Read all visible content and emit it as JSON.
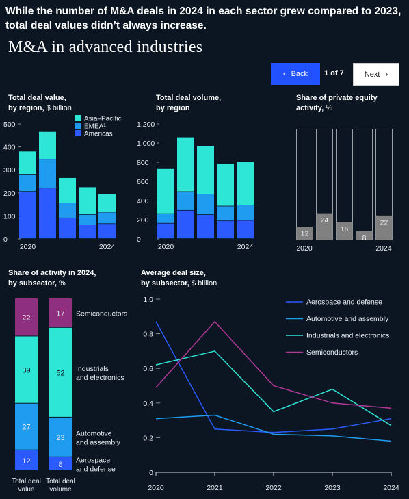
{
  "header": {
    "headline": "While the number of M&A deals in 2024 in each sector grew compared to 2023, total deal values didn’t always increase.",
    "title": "M&A in advanced industries"
  },
  "nav": {
    "back_label": "Back",
    "back_icon": "chevron-left-icon",
    "pager": "1 of 7",
    "next_label": "Next",
    "next_icon": "chevron-right-icon"
  },
  "panels": {
    "value": {
      "title": "Total deal value,",
      "title2": "by region,",
      "unit": " $ billion"
    },
    "volume": {
      "title": "Total deal volume,",
      "title2": "by region",
      "unit": ""
    },
    "pe": {
      "title": "Share of private equity",
      "title2": "activity,",
      "unit": " %"
    },
    "share": {
      "title": "Share of activity in 2024,",
      "title2": "by subsector,",
      "unit": " %"
    },
    "size": {
      "title": "Average deal size,",
      "title2": "by subsector,",
      "unit": " $ billion"
    }
  },
  "colors": {
    "americas": "#2b5bff",
    "emea": "#1f9cf0",
    "asia_pacific": "#2ee6d6",
    "semiconductors": "#8e2f7f",
    "pe_fill": "#808080",
    "pe_outline": "#9aa0a6",
    "line_aero": "#2b5bff",
    "line_auto": "#1f9cf0",
    "line_ind": "#2ee6d6",
    "line_semi": "#b03a98"
  },
  "chart_data": [
    {
      "id": "deal_value",
      "type": "bar",
      "stacked": true,
      "categories": [
        "2020",
        "2021",
        "2022",
        "2023",
        "2024"
      ],
      "x_tick_labels": [
        "2020",
        "2024"
      ],
      "series": [
        {
          "name": "Americas",
          "values": [
            205,
            220,
            90,
            60,
            65
          ]
        },
        {
          "name": "EMEA",
          "values": [
            75,
            125,
            65,
            45,
            50
          ]
        },
        {
          "name": "Asia–Pacific",
          "values": [
            100,
            120,
            110,
            120,
            80
          ]
        }
      ],
      "legend_labels": [
        "Asia–Pacific",
        "EMEA¹",
        "Americas"
      ],
      "legend_position": "top-right",
      "ylim": [
        0,
        500
      ],
      "yticks": [
        0,
        100,
        200,
        300,
        400,
        500
      ]
    },
    {
      "id": "deal_volume",
      "type": "bar",
      "stacked": true,
      "categories": [
        "2020",
        "2021",
        "2022",
        "2023",
        "2024"
      ],
      "x_tick_labels": [
        "2020",
        "2024"
      ],
      "series": [
        {
          "name": "Americas",
          "values": [
            160,
            295,
            250,
            185,
            190
          ]
        },
        {
          "name": "EMEA",
          "values": [
            100,
            195,
            215,
            155,
            160
          ]
        },
        {
          "name": "Asia–Pacific",
          "values": [
            470,
            570,
            505,
            440,
            455
          ]
        }
      ],
      "ylim": [
        0,
        1200
      ],
      "yticks": [
        0,
        200,
        400,
        600,
        800,
        1000,
        1200
      ],
      "ytick_labels": [
        "0",
        "200",
        "400",
        "600",
        "800",
        "1,000",
        "1,200"
      ]
    },
    {
      "id": "private_equity_share",
      "type": "bar",
      "categories": [
        "2020",
        "2021",
        "2022",
        "2023",
        "2024"
      ],
      "x_tick_labels": [
        "2020",
        "2024"
      ],
      "values": [
        12,
        24,
        16,
        8,
        22
      ],
      "ylim": [
        0,
        100
      ]
    },
    {
      "id": "subsector_share",
      "type": "bar",
      "stacked": true,
      "percent": true,
      "categories": [
        "Total deal value",
        "Total deal volume"
      ],
      "category_lines": [
        [
          "Total deal",
          "value"
        ],
        [
          "Total deal",
          "volume"
        ]
      ],
      "series": [
        {
          "name": "Aerospace and defense",
          "label_lines": [
            "Aerospace",
            "and defense"
          ],
          "values": [
            12,
            8
          ]
        },
        {
          "name": "Automotive and assembly",
          "label_lines": [
            "Automotive",
            "and assembly"
          ],
          "values": [
            27,
            23
          ]
        },
        {
          "name": "Industrials and electronics",
          "label_lines": [
            "Industrials",
            "and electronics"
          ],
          "values": [
            39,
            52
          ]
        },
        {
          "name": "Semiconductors",
          "label_lines": [
            "Semiconductors"
          ],
          "values": [
            22,
            17
          ]
        }
      ]
    },
    {
      "id": "avg_deal_size",
      "type": "line",
      "x": [
        "2020",
        "2021",
        "2022",
        "2023",
        "2024"
      ],
      "series": [
        {
          "name": "Aerospace and defense",
          "values": [
            0.87,
            0.25,
            0.23,
            0.25,
            0.31
          ]
        },
        {
          "name": "Automotive and assembly",
          "values": [
            0.31,
            0.33,
            0.22,
            0.21,
            0.18
          ]
        },
        {
          "name": "Industrials and electronics",
          "values": [
            0.62,
            0.7,
            0.35,
            0.48,
            0.27
          ]
        },
        {
          "name": "Semiconductors",
          "values": [
            0.49,
            0.87,
            0.5,
            0.4,
            0.37
          ]
        }
      ],
      "ylim": [
        0,
        1.0
      ],
      "yticks": [
        0,
        0.2,
        0.4,
        0.6,
        0.8,
        1.0
      ],
      "ytick_labels": [
        "0",
        "0.2",
        "0.4",
        "0.6",
        "0.8",
        "1.0"
      ],
      "legend_position": "top-right"
    }
  ]
}
